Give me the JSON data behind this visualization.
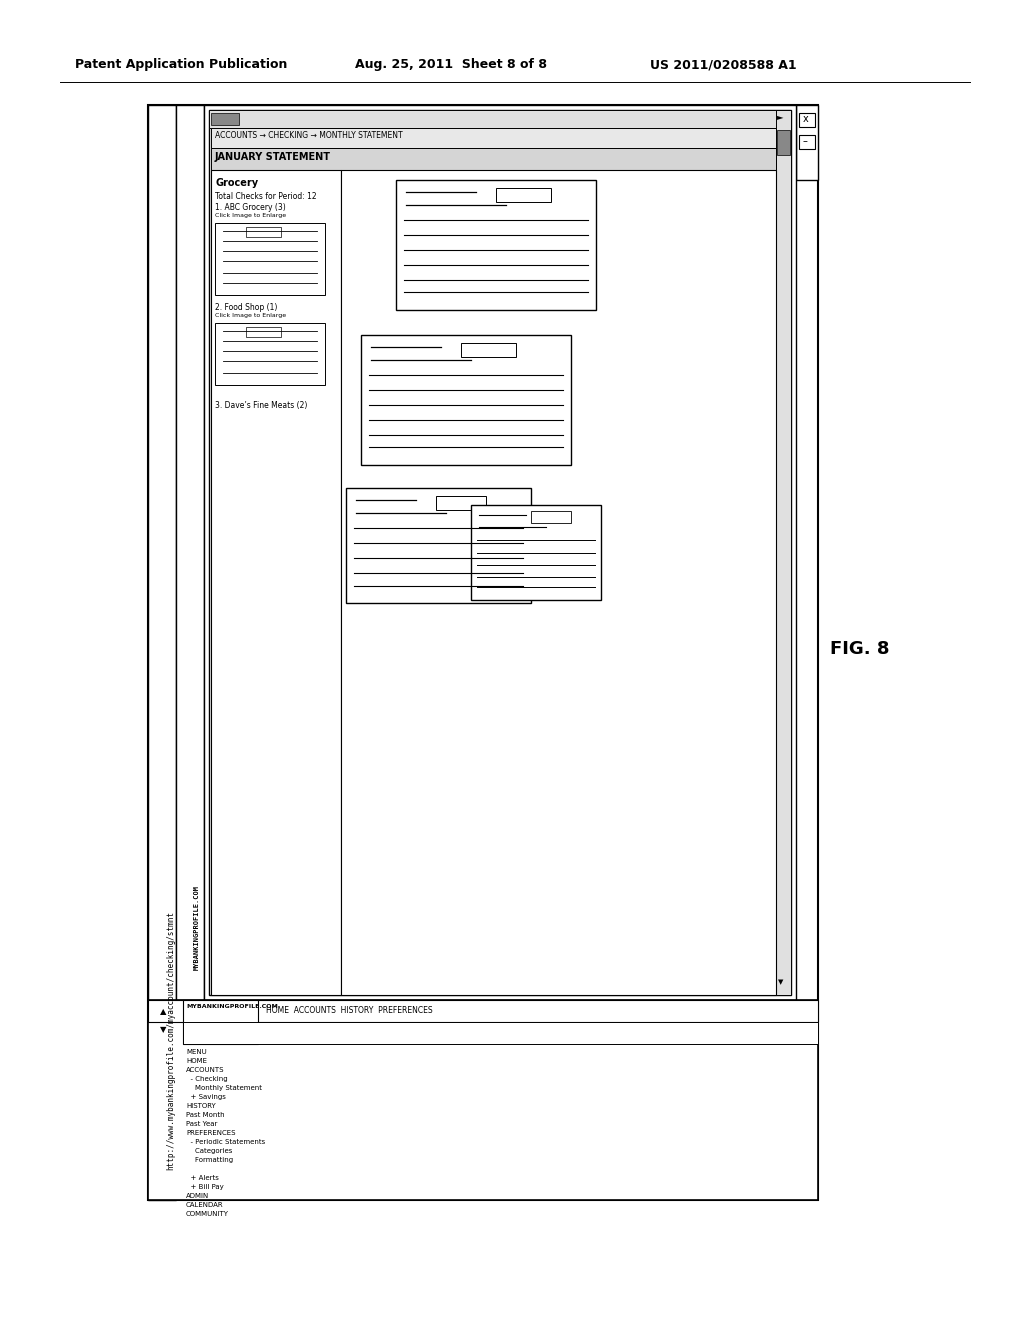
{
  "bg_color": "#ffffff",
  "header_text_left": "Patent Application Publication",
  "header_text_mid": "Aug. 25, 2011  Sheet 8 of 8",
  "header_text_right": "US 2011/0208588 A1",
  "fig_label": "FIG. 8",
  "url_text": "http://www.mybankingprofile.com/myaccount/checking/stmnt",
  "site_name": "MYBANKINGPROFILE.COM",
  "nav_items": "HOME  ACCOUNTS  HISTORY  PREFERENCES",
  "breadcrumb": "ACCOUNTS → CHECKING → MONTHLY STATEMENT",
  "section_header": "JANUARY STATEMENT",
  "content_title": "Grocery",
  "content_line1": "Total Checks for Period: 12",
  "content_line2": "1. ABC Grocery (3)",
  "click_enlarge1": "Click Image to Enlarge",
  "label2": "2. Food Shop (1)",
  "click_enlarge2": "Click Image to Enlarge",
  "label3": "3. Dave’s Fine Meats (2)",
  "menu_items": [
    "MENU",
    "HOME",
    "ACCOUNTS",
    "  - Checking",
    "    Monthly Statement",
    "  + Savings",
    "HISTORY",
    "Past Month",
    "Past Year",
    "PREFERENCES",
    "  - Periodic Statements",
    "    Categories",
    "    Formatting",
    "",
    "  + Alerts",
    "  + Bill Pay",
    "ADMIN",
    "CALENDAR",
    "COMMUNITY"
  ]
}
